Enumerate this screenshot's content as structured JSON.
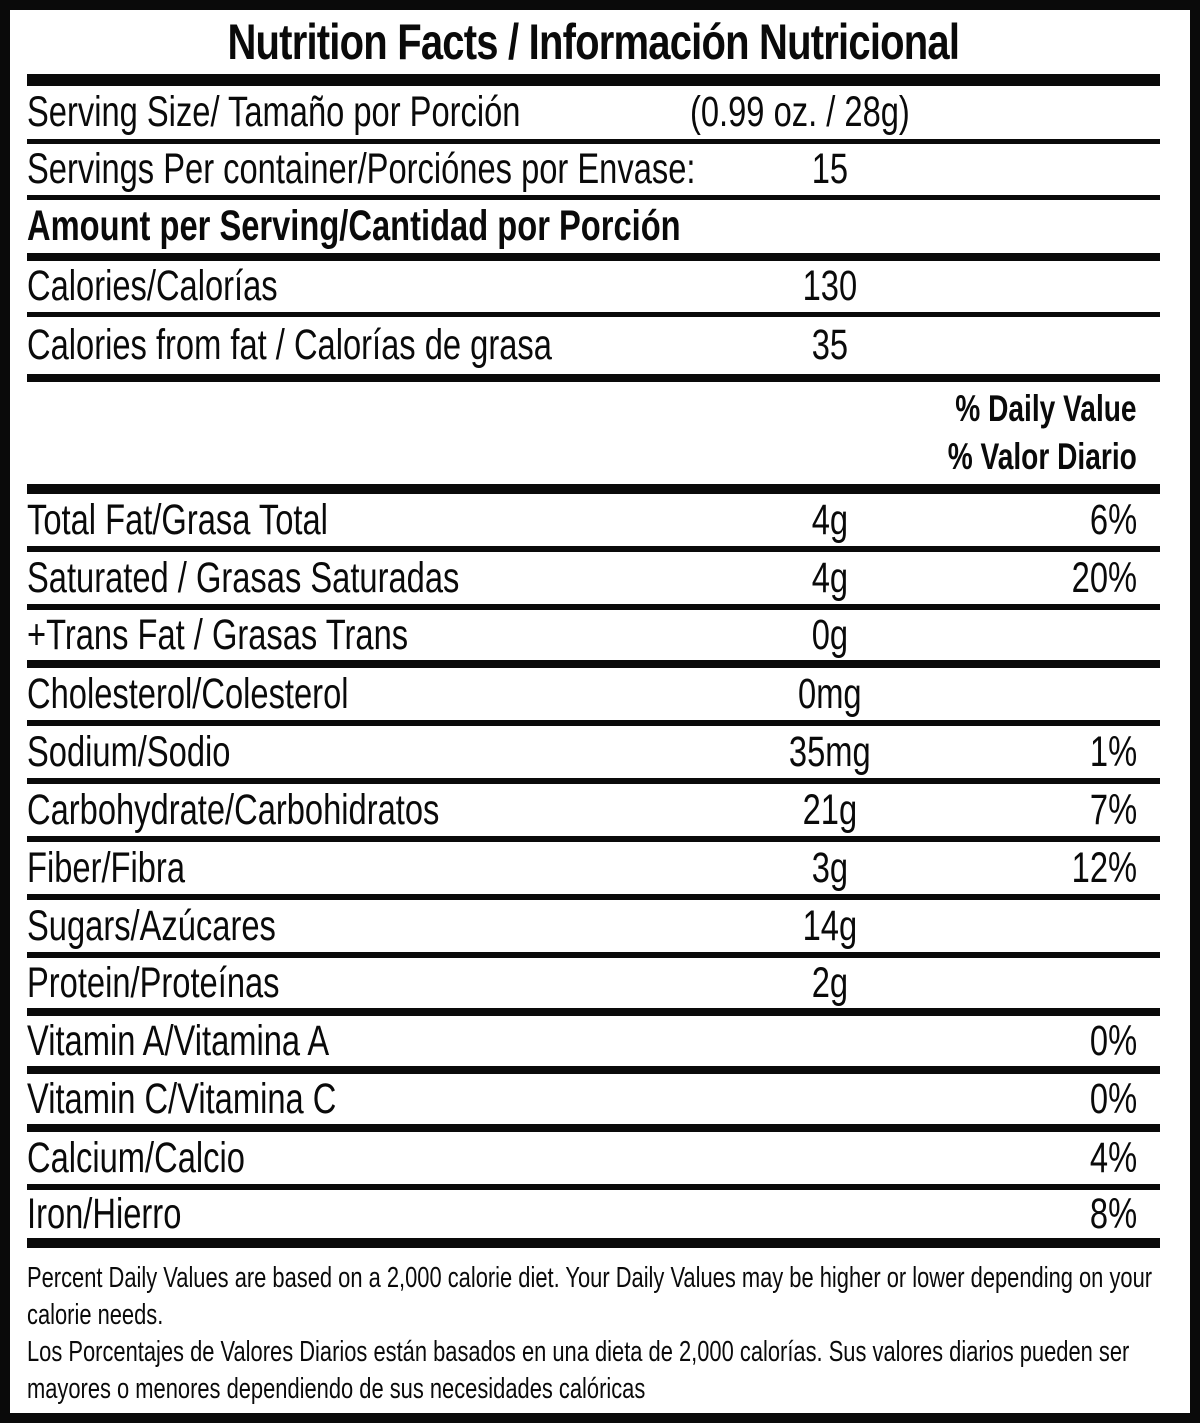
{
  "title": "Nutrition Facts / Información Nutricional",
  "serving": {
    "size_label": "Serving Size/ Tamaño por Porción",
    "size_value": "(0.99 oz. / 28g)",
    "per_container_label": "Servings Per container/Porciónes por Envase:",
    "per_container_value": "15"
  },
  "amount_per_serving_header": "Amount per Serving/Cantidad por Porción",
  "calories": {
    "label": "Calories/Calorías",
    "value": "130"
  },
  "calories_from_fat": {
    "label": "Calories from fat / Calorías de grasa",
    "value": "35"
  },
  "daily_value_header": {
    "en": "% Daily Value",
    "es": "% Valor Diario"
  },
  "nutrients": [
    {
      "name": "Total Fat/Grasa Total",
      "amount": "4g",
      "daily_value": "6%"
    },
    {
      "name": "Saturated / Grasas Saturadas",
      "amount": "4g",
      "daily_value": "20%"
    },
    {
      "name": "+Trans Fat / Grasas Trans",
      "amount": "0g",
      "daily_value": ""
    },
    {
      "name": "Cholesterol/Colesterol",
      "amount": "0mg",
      "daily_value": ""
    },
    {
      "name": "Sodium/Sodio",
      "amount": "35mg",
      "daily_value": "1%"
    },
    {
      "name": "Carbohydrate/Carbohidratos",
      "amount": "21g",
      "daily_value": "7%"
    },
    {
      "name": "Fiber/Fibra",
      "amount": "3g",
      "daily_value": "12%"
    },
    {
      "name": "Sugars/Azúcares",
      "amount": "14g",
      "daily_value": ""
    },
    {
      "name": "Protein/Proteínas",
      "amount": "2g",
      "daily_value": ""
    },
    {
      "name": "Vitamin A/Vitamina A",
      "amount": "",
      "daily_value": "0%"
    },
    {
      "name": "Vitamin C/Vitamina C",
      "amount": "",
      "daily_value": "0%"
    },
    {
      "name": "Calcium/Calcio",
      "amount": "",
      "daily_value": "4%"
    },
    {
      "name": "Iron/Hierro",
      "amount": "",
      "daily_value": "8%"
    }
  ],
  "footnotes": {
    "en": "Percent Daily Values are based on a 2,000 calorie diet. Your Daily Values may be higher or lower depending on your calorie needs.",
    "es": "Los Porcentajes de Valores Diarios están basados en una dieta de 2,000 calorías. Sus valores diarios pueden ser mayores o menores dependiendo de sus necesidades calóricas"
  },
  "colors": {
    "ink": "#0a0a0a",
    "background": "#ffffff"
  }
}
